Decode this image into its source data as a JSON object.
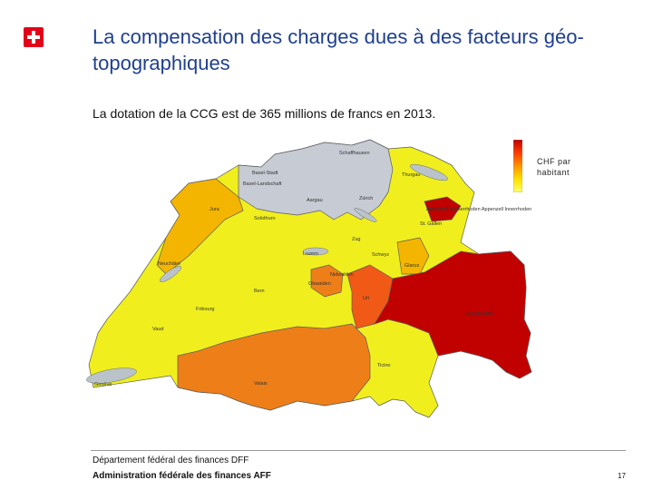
{
  "slide": {
    "title": "La compensation des charges dues à des facteurs géo-topographiques",
    "subtitle": "La dotation de la CCG est de 365 millions de francs en 2013.",
    "page_number": "17"
  },
  "footer": {
    "department": "Département fédéral des finances DFF",
    "administration": "Administration fédérale des finances AFF"
  },
  "legend": {
    "label": "CHF par habitant",
    "colors": [
      "#c00000",
      "#ff3b00",
      "#ff9400",
      "#ffe100",
      "#ffff6a"
    ]
  },
  "map": {
    "colors": {
      "low": "#f0ef1d",
      "mid": "#f4b500",
      "high": "#ee7f18",
      "veryhigh": "#f05a16",
      "max": "#c10000",
      "grey": "#c7cbd4",
      "lake": "#b9c3c9",
      "border": "#5c5c5c"
    },
    "labels": {
      "schaffhausen": "Schaffhausen",
      "baselstadt": "Basel-Stadt",
      "baselland": "Basel-Landschaft",
      "thurgau": "Thurgau",
      "aargau": "Aargau",
      "zurich": "Zürich",
      "jura": "Jura",
      "solothurn": "Solothurn",
      "appenzell": "Appenzell Ausserrhoden Appenzell Innerrhoden",
      "stgallen": "St. Gallen",
      "neuchatel": "Neuchâtel",
      "luzern": "Luzern",
      "zug": "Zug",
      "schwyz": "Schwyz",
      "glarus": "Glarus",
      "obwalden": "Obwalden",
      "nidwalden": "Nidwalden",
      "uri": "Uri",
      "bern": "Bern",
      "fribourg": "Fribourg",
      "graubunden": "Graubünden",
      "vaud": "Vaud",
      "geneve": "Genève",
      "valais": "Valais",
      "ticino": "Ticino"
    }
  }
}
